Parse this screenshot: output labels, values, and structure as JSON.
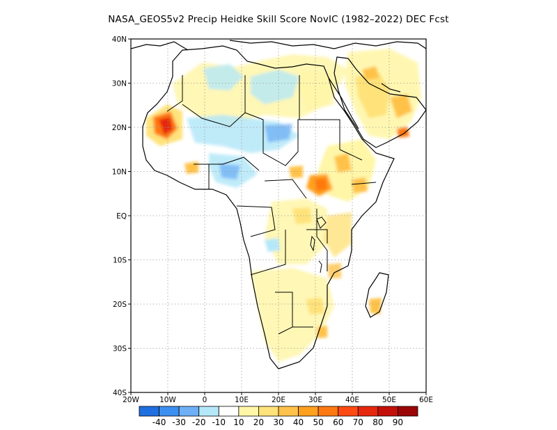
{
  "title": "NASA_GEOS5v2 Precip Heidke Skill Score NovIC (1982–2022) DEC Fcst",
  "lat_labels": [
    "40N",
    "30N",
    "20N",
    "10N",
    "EQ",
    "10S",
    "20S",
    "30S",
    "40S"
  ],
  "lon_labels": [
    "20W",
    "10W",
    "0",
    "10E",
    "20E",
    "30E",
    "40E",
    "50E",
    "60E"
  ],
  "colorbar": {
    "colors": [
      "#1f6fe0",
      "#3c8ff0",
      "#6eaff5",
      "#b4e8f8",
      "#ffffff",
      "#fff6a8",
      "#ffe27a",
      "#ffc24a",
      "#ffa01e",
      "#ff7810",
      "#ff4a14",
      "#e6280e",
      "#c4100a",
      "#9a0606"
    ],
    "labels": [
      "-40",
      "-30",
      "-20",
      "-10",
      "10",
      "20",
      "30",
      "40",
      "50",
      "60",
      "70",
      "80",
      "90"
    ]
  },
  "layout_note_colors": {
    "grid": "#9a9a9a",
    "coast": "#000000"
  }
}
